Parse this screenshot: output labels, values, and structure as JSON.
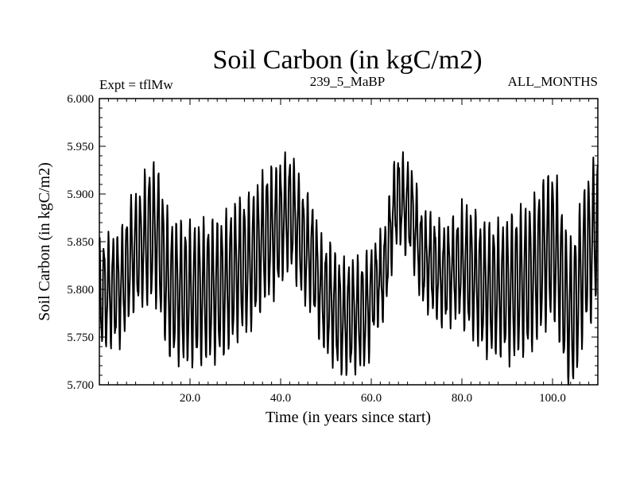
{
  "chart_data": {
    "type": "line",
    "title": "Soil Carbon (in kgC/m2)",
    "subtitle_left": "Expt = tflMw",
    "subtitle_center": "239_5_MaBP",
    "subtitle_right": "ALL_MONTHS",
    "xlabel": "Time (in years since start)",
    "ylabel": "Soil Carbon (in kgC/m2)",
    "xlim": [
      0,
      110
    ],
    "ylim": [
      5.7,
      6.0
    ],
    "x_ticks": [
      20,
      40,
      60,
      80,
      100
    ],
    "x_tick_labels": [
      "20.0",
      "40.0",
      "60.0",
      "80.0",
      "100.0"
    ],
    "y_ticks": [
      5.7,
      5.75,
      5.8,
      5.85,
      5.9,
      5.95,
      6.0
    ],
    "y_tick_labels": [
      "5.700",
      "5.750",
      "5.800",
      "5.850",
      "5.900",
      "5.950",
      "6.000"
    ],
    "series": [
      {
        "name": "Soil Carbon",
        "color": "#000000",
        "sampling": "monthly",
        "annual_cycle_amplitude": [
          0.05,
          0.06,
          0.06,
          0.06,
          0.055,
          0.06,
          0.05,
          0.05,
          0.06,
          0.065,
          0.065,
          0.065
        ],
        "annual_mean_anchors": {
          "x": [
            0,
            4,
            8,
            12,
            16,
            20,
            26,
            32,
            38,
            42,
            46,
            50,
            54,
            58,
            62,
            66,
            68,
            72,
            76,
            80,
            86,
            90,
            94,
            100,
            104,
            108,
            110
          ],
          "y": [
            5.795,
            5.8,
            5.84,
            5.86,
            5.8,
            5.795,
            5.8,
            5.825,
            5.86,
            5.88,
            5.84,
            5.79,
            5.77,
            5.775,
            5.81,
            5.895,
            5.885,
            5.83,
            5.815,
            5.825,
            5.8,
            5.8,
            5.81,
            5.845,
            5.775,
            5.84,
            5.87
          ]
        }
      }
    ]
  }
}
